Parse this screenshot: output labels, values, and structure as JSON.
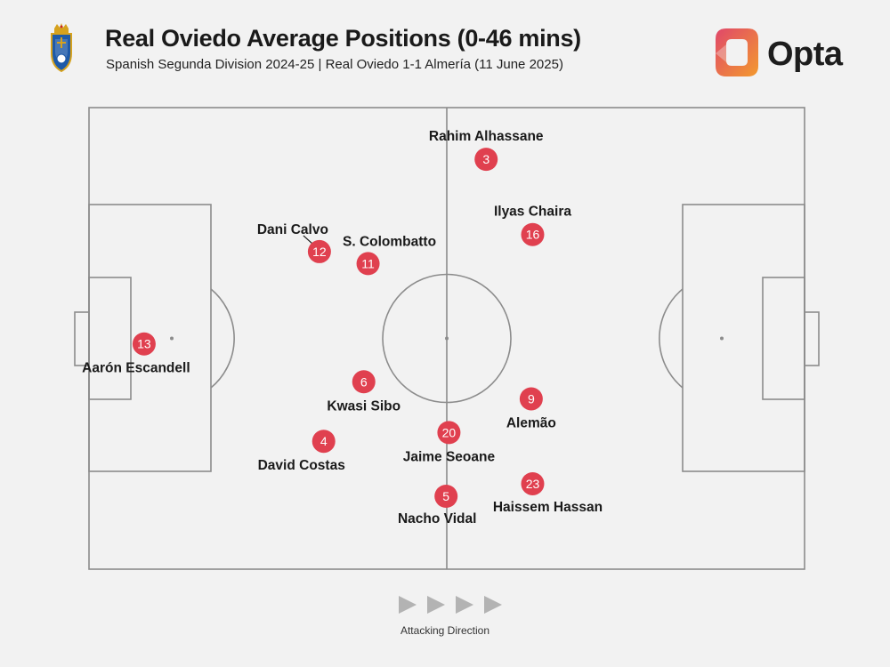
{
  "header": {
    "title": "Real Oviedo Average Positions (0-46 mins)",
    "subtitle": "Spanish Segunda Division 2024-25 | Real Oviedo 1-1 Almería (11 June 2025)",
    "brand": "Opta"
  },
  "colors": {
    "background": "#f2f2f2",
    "pitch_lines": "#8c8c8c",
    "player_marker": "#e0404f",
    "text": "#1a1a1a",
    "opta_gradient": [
      "#e0476a",
      "#f39a2e"
    ],
    "arrow": "#b3b3b3"
  },
  "chart_data": {
    "type": "scatter",
    "marker": "numbered-circle",
    "x_axis": "pitch length, 0 = own goal line, 100 = opponent goal line",
    "y_axis": "pitch width, 0 = top touchline, 100 = bottom touchline",
    "players": [
      {
        "number": "3",
        "name": "Rahim Alhassane",
        "x": 55.5,
        "y": 11.2
      },
      {
        "number": "16",
        "name": "Ilyas Chaira",
        "x": 62.0,
        "y": 27.5
      },
      {
        "number": "12",
        "name": "Dani Calvo",
        "x": 32.2,
        "y": 31.2
      },
      {
        "number": "11",
        "name": "S. Colombatto",
        "x": 39.0,
        "y": 33.8
      },
      {
        "number": "13",
        "name": "Aarón Escandell",
        "x": 7.7,
        "y": 51.2
      },
      {
        "number": "6",
        "name": "Kwasi Sibo",
        "x": 38.4,
        "y": 59.4
      },
      {
        "number": "9",
        "name": "Alemão",
        "x": 61.8,
        "y": 63.1
      },
      {
        "number": "20",
        "name": "Jaime Seoane",
        "x": 50.3,
        "y": 70.4
      },
      {
        "number": "4",
        "name": "David Costas",
        "x": 32.8,
        "y": 72.3
      },
      {
        "number": "23",
        "name": "Haissem Hassan",
        "x": 62.0,
        "y": 81.5
      },
      {
        "number": "5",
        "name": "Nacho Vidal",
        "x": 49.9,
        "y": 84.2
      }
    ]
  },
  "footer": {
    "attacking_direction_label": "Attacking Direction"
  }
}
